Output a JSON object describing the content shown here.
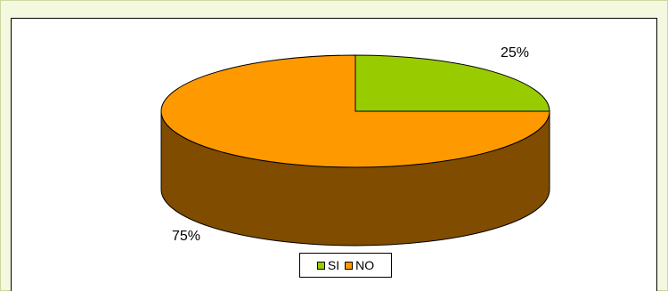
{
  "chart_data": {
    "type": "pie",
    "style": "3d",
    "categories": [
      "SI",
      "NO"
    ],
    "values": [
      25,
      75
    ],
    "labels": [
      "25%",
      "75%"
    ],
    "colors": [
      "#99cc00",
      "#ff9900"
    ],
    "side_colors": [
      "#5a7800",
      "#7f4c00"
    ],
    "legend": {
      "placement": "bottom",
      "entries": [
        "SI",
        "NO"
      ]
    }
  }
}
